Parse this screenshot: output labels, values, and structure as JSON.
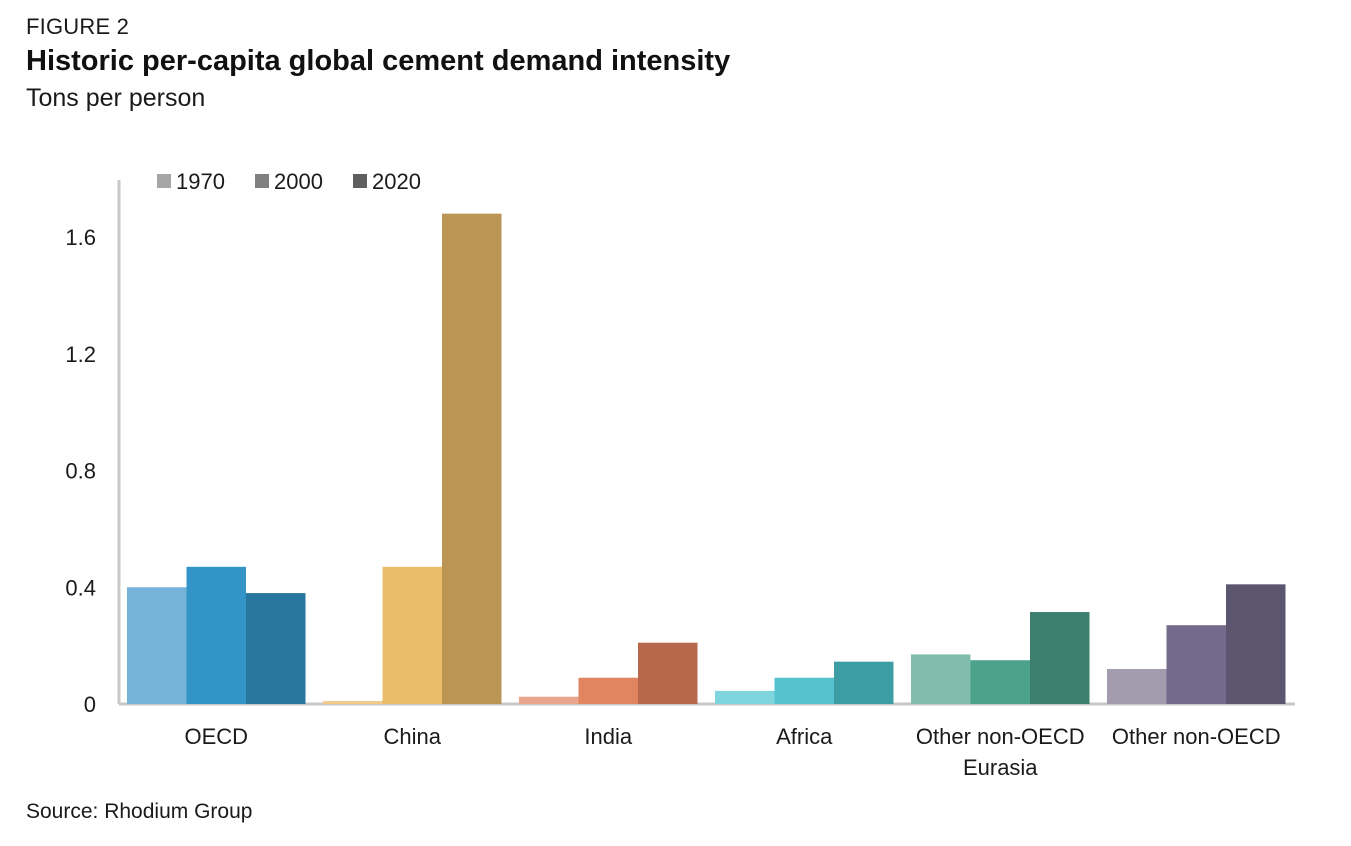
{
  "figure_label": "FIGURE 2",
  "source": "Source: Rhodium Group",
  "chart_data": {
    "type": "bar",
    "title": "Historic per-capita global cement demand intensity",
    "subtitle": "Tons per person",
    "xlabel": "",
    "ylabel": "",
    "ylim": [
      0,
      1.8
    ],
    "yticks": [
      0,
      0.4,
      0.8,
      1.2,
      1.6
    ],
    "ytick_labels": [
      "0",
      "0.4",
      "0.8",
      "1.2",
      "1.6"
    ],
    "grid": false,
    "legend_position": "top-left",
    "categories": [
      [
        "OECD"
      ],
      [
        "China"
      ],
      [
        "India"
      ],
      [
        "Africa"
      ],
      [
        "Other non-OECD",
        "Eurasia"
      ],
      [
        "Other non-OECD"
      ]
    ],
    "series": [
      {
        "name": "1970",
        "legend_color": "#a6a6a6",
        "values": [
          0.4,
          0.01,
          0.025,
          0.045,
          0.17,
          0.12
        ]
      },
      {
        "name": "2000",
        "legend_color": "#808080",
        "values": [
          0.47,
          0.47,
          0.09,
          0.09,
          0.15,
          0.27
        ]
      },
      {
        "name": "2020",
        "legend_color": "#5f5f5f",
        "values": [
          0.38,
          1.68,
          0.21,
          0.145,
          0.315,
          0.41
        ]
      }
    ],
    "bar_colors": [
      [
        "#75b3d8",
        "#3294c7",
        "#27769e"
      ],
      [
        "#f1c98a",
        "#eabd6a",
        "#bb9554"
      ],
      [
        "#eaa68c",
        "#e0855f",
        "#b6674c"
      ],
      [
        "#7ed5dd",
        "#54c3cf",
        "#3c9da4"
      ],
      [
        "#82bdab",
        "#4ca28b",
        "#3d7f6e"
      ],
      [
        "#a39caf",
        "#736b8b",
        "#5c556f"
      ]
    ],
    "axis_color": "#c8c8c8"
  }
}
